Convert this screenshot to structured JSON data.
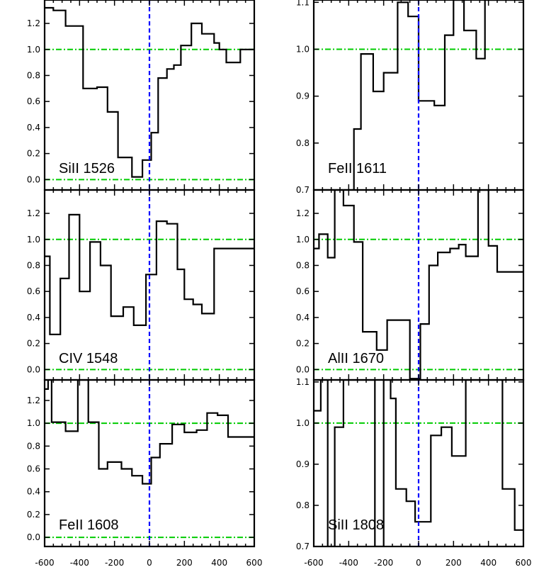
{
  "chart_data": [
    {
      "type": "line",
      "label": "SiII 1526",
      "xlim": [
        -600,
        600
      ],
      "ylim": [
        -0.08,
        1.38
      ],
      "yticks": [
        0.0,
        0.2,
        0.4,
        0.6,
        0.8,
        1.0,
        1.2
      ],
      "ytick_labels": [
        "0.0",
        "0.2",
        "0.4",
        "0.6",
        "0.8",
        "1.0",
        "1.2"
      ],
      "bins": [
        -600,
        -550,
        -480,
        -380,
        -300,
        -240,
        -180,
        -100,
        -40,
        10,
        50,
        100,
        140,
        180,
        240,
        300,
        370,
        400,
        440,
        480,
        520,
        570,
        600
      ],
      "flux": [
        1.32,
        1.3,
        1.18,
        0.7,
        0.71,
        0.52,
        0.17,
        0.02,
        0.15,
        0.36,
        0.78,
        0.85,
        0.88,
        1.03,
        1.2,
        1.12,
        1.05,
        1.0,
        0.9,
        0.9,
        1.0,
        1.0
      ]
    },
    {
      "type": "line",
      "label": "FeII 1611",
      "xlim": [
        -600,
        600
      ],
      "ylim": [
        0.7,
        1.105
      ],
      "yticks": [
        0.7,
        0.8,
        0.9,
        1.0,
        1.1
      ],
      "ytick_labels": [
        "0.7",
        "0.8",
        "0.9",
        "1.0",
        "1.1"
      ],
      "bins": [
        -600,
        -550,
        -500,
        -440,
        -370,
        -330,
        -260,
        -200,
        -120,
        -60,
        0,
        40,
        90,
        150,
        200,
        260,
        330,
        380,
        420,
        450,
        500,
        600
      ],
      "flux": [
        0.7,
        0.7,
        0.7,
        0.7,
        0.83,
        0.99,
        0.91,
        0.95,
        1.1,
        1.07,
        0.89,
        0.89,
        0.88,
        1.03,
        1.15,
        1.04,
        0.98,
        1.15,
        1.15,
        1.15,
        1.15
      ]
    },
    {
      "type": "line",
      "label": "CIV 1548",
      "xlim": [
        -600,
        600
      ],
      "ylim": [
        -0.08,
        1.38
      ],
      "yticks": [
        0.0,
        0.2,
        0.4,
        0.6,
        0.8,
        1.0,
        1.2
      ],
      "ytick_labels": [
        "0.0",
        "0.2",
        "0.4",
        "0.6",
        "0.8",
        "1.0",
        "1.2"
      ],
      "bins": [
        -600,
        -570,
        -510,
        -460,
        -400,
        -340,
        -280,
        -220,
        -150,
        -90,
        -20,
        40,
        100,
        160,
        200,
        250,
        300,
        370,
        430,
        490,
        540,
        600
      ],
      "flux": [
        0.87,
        0.27,
        0.7,
        1.19,
        0.6,
        0.98,
        0.8,
        0.41,
        0.48,
        0.34,
        0.73,
        1.14,
        1.12,
        0.77,
        0.54,
        0.5,
        0.43,
        0.93,
        0.93,
        0.93,
        0.93
      ]
    },
    {
      "type": "line",
      "label": "AlII 1670",
      "xlim": [
        -600,
        600
      ],
      "ylim": [
        -0.08,
        1.38
      ],
      "yticks": [
        0.0,
        0.2,
        0.4,
        0.6,
        0.8,
        1.0,
        1.2
      ],
      "ytick_labels": [
        "0.0",
        "0.2",
        "0.4",
        "0.6",
        "0.8",
        "1.0",
        "1.2"
      ],
      "bins": [
        -600,
        -570,
        -520,
        -480,
        -430,
        -370,
        -320,
        -240,
        -180,
        -110,
        -50,
        -20,
        10,
        60,
        110,
        180,
        230,
        270,
        340,
        400,
        450,
        530,
        570,
        600
      ],
      "flux": [
        0.93,
        1.04,
        0.86,
        1.4,
        1.26,
        0.98,
        0.29,
        0.15,
        0.38,
        0.38,
        -0.07,
        -0.07,
        0.35,
        0.8,
        0.9,
        0.93,
        0.96,
        0.87,
        1.4,
        0.95,
        0.75,
        0.75,
        0.75
      ]
    },
    {
      "type": "line",
      "label": "FeII 1608",
      "xlim": [
        -600,
        600
      ],
      "ylim": [
        -0.08,
        1.38
      ],
      "yticks": [
        0.0,
        0.2,
        0.4,
        0.6,
        0.8,
        1.0,
        1.2
      ],
      "ytick_labels": [
        "0.0",
        "0.2",
        "0.4",
        "0.6",
        "0.8",
        "1.0",
        "1.2"
      ],
      "bins": [
        -600,
        -580,
        -560,
        -480,
        -410,
        -350,
        -290,
        -240,
        -160,
        -100,
        -40,
        10,
        60,
        130,
        200,
        270,
        330,
        390,
        450,
        500,
        570,
        600
      ],
      "flux": [
        1.3,
        1.38,
        1.01,
        0.93,
        1.38,
        1.01,
        0.6,
        0.66,
        0.6,
        0.54,
        0.47,
        0.7,
        0.82,
        0.99,
        0.92,
        0.94,
        1.09,
        1.07,
        0.88,
        0.88,
        0.88
      ]
    },
    {
      "type": "line",
      "label": "SiII 1808",
      "xlim": [
        -600,
        600
      ],
      "ylim": [
        0.7,
        1.105
      ],
      "yticks": [
        0.7,
        0.8,
        0.9,
        1.0,
        1.1
      ],
      "ytick_labels": [
        "0.7",
        "0.8",
        "0.9",
        "1.0",
        "1.1"
      ],
      "bins": [
        -600,
        -560,
        -520,
        -480,
        -430,
        -380,
        -300,
        -250,
        -200,
        -160,
        -130,
        -70,
        -20,
        0,
        70,
        130,
        190,
        270,
        300,
        360,
        420,
        480,
        550,
        600
      ],
      "flux": [
        1.03,
        1.12,
        0.7,
        0.99,
        1.12,
        1.12,
        1.12,
        0.7,
        1.12,
        1.06,
        0.84,
        0.81,
        0.76,
        0.76,
        0.97,
        0.99,
        0.92,
        1.12,
        1.12,
        1.12,
        1.12,
        0.84,
        0.74
      ]
    }
  ],
  "xticks": [
    -600,
    -400,
    -200,
    0,
    200,
    400,
    600
  ],
  "xtick_labels": [
    "-600",
    "-400",
    "-200",
    "0",
    "200",
    "400",
    "600"
  ],
  "colors": {
    "spectrum": "#000000",
    "continuum": "#00cc00",
    "zero_velocity": "#0000ff",
    "axes": "#000000"
  }
}
